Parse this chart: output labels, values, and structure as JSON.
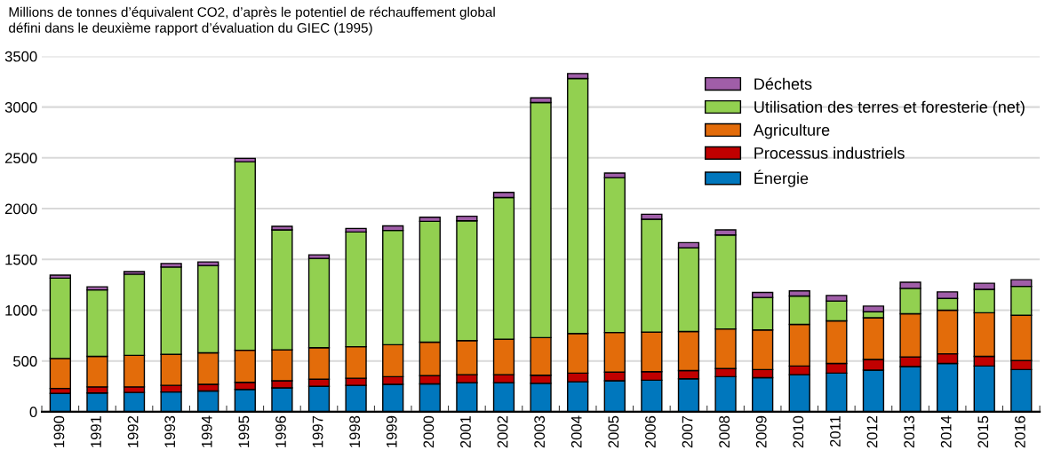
{
  "chart_data": {
    "type": "bar",
    "stacked": true,
    "ylabel": "Millions de tonnes d’équivalent CO2, d’après le potentiel de réchauffement global\ndéfini dans le deuxième rapport d’évaluation du GIEC (1995)",
    "categories": [
      "1990",
      "1991",
      "1992",
      "1993",
      "1994",
      "1995",
      "1996",
      "1997",
      "1998",
      "1999",
      "2000",
      "2001",
      "2002",
      "2003",
      "2004",
      "2005",
      "2006",
      "2007",
      "2008",
      "2009",
      "2010",
      "2011",
      "2012",
      "2013",
      "2014",
      "2015",
      "2016"
    ],
    "series": [
      {
        "name": "Énergie",
        "color": "#0077bd",
        "values": [
          180,
          185,
          190,
          195,
          205,
          220,
          235,
          250,
          260,
          270,
          275,
          285,
          285,
          280,
          295,
          305,
          310,
          325,
          345,
          335,
          365,
          380,
          410,
          445,
          475,
          450,
          415
        ]
      },
      {
        "name": "Processus industriels",
        "color": "#c00000",
        "values": [
          50,
          60,
          55,
          65,
          65,
          70,
          70,
          70,
          70,
          75,
          80,
          80,
          80,
          80,
          85,
          85,
          85,
          80,
          80,
          80,
          85,
          95,
          105,
          95,
          95,
          95,
          90
        ]
      },
      {
        "name": "Agriculture",
        "color": "#e36c0a",
        "values": [
          295,
          300,
          310,
          305,
          310,
          315,
          305,
          310,
          310,
          315,
          330,
          335,
          350,
          370,
          390,
          390,
          390,
          385,
          390,
          390,
          410,
          420,
          410,
          425,
          430,
          430,
          445
        ]
      },
      {
        "name": "Utilisation des terres et foresterie (net)",
        "color": "#92d050",
        "values": [
          790,
          655,
          800,
          860,
          860,
          1855,
          1180,
          880,
          1130,
          1125,
          1190,
          1180,
          1395,
          2315,
          2510,
          1525,
          1110,
          825,
          925,
          320,
          280,
          195,
          60,
          250,
          115,
          230,
          285
        ]
      },
      {
        "name": "Déchets",
        "color": "#a05ea8",
        "values": [
          30,
          30,
          25,
          35,
          35,
          35,
          35,
          35,
          35,
          45,
          40,
          45,
          50,
          45,
          50,
          45,
          50,
          50,
          50,
          50,
          50,
          55,
          55,
          60,
          65,
          60,
          65
        ]
      }
    ],
    "ylim": [
      0,
      3500
    ],
    "yticks": [
      0,
      500,
      1000,
      1500,
      2000,
      2500,
      3000,
      3500
    ],
    "grid": "y",
    "legend": "top right"
  }
}
